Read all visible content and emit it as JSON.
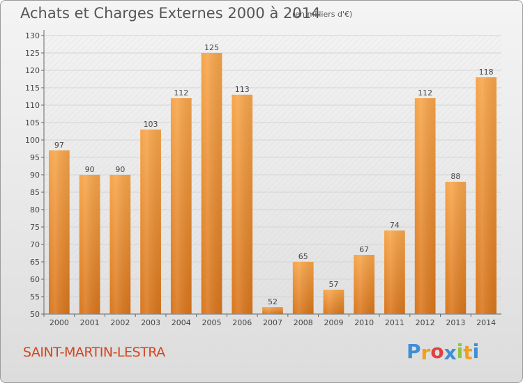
{
  "title": "Achats et Charges Externes 2000 à 2014",
  "subtitle": "(en milliers d'€)",
  "town": "SAINT-MARTIN-LESTRA",
  "logo": {
    "text": "Proxiti",
    "letters": [
      "P",
      "r",
      "o",
      "x",
      "i",
      "t",
      "i"
    ],
    "colors": [
      "#3d8fd6",
      "#f0a020",
      "#e04040",
      "#3d8fd6",
      "#8cc63f",
      "#f0a020",
      "#3d8fd6"
    ]
  },
  "colors": {
    "bar_top": "#f7a54a",
    "bar_bottom": "#d9761c",
    "accent_text": "#d2451e"
  },
  "chart_data": {
    "type": "bar",
    "categories": [
      "2000",
      "2001",
      "2002",
      "2003",
      "2004",
      "2005",
      "2006",
      "2007",
      "2008",
      "2009",
      "2010",
      "2011",
      "2012",
      "2013",
      "2014"
    ],
    "values": [
      97,
      90,
      90,
      103,
      112,
      125,
      113,
      52,
      65,
      57,
      67,
      74,
      112,
      88,
      118
    ],
    "ylim": [
      50,
      130
    ],
    "yticks": [
      50,
      55,
      60,
      65,
      70,
      75,
      80,
      85,
      90,
      95,
      100,
      105,
      110,
      115,
      120,
      125,
      130
    ],
    "grid": true,
    "title": "Achats et Charges Externes 2000 à 2014",
    "xlabel": "",
    "ylabel": ""
  }
}
